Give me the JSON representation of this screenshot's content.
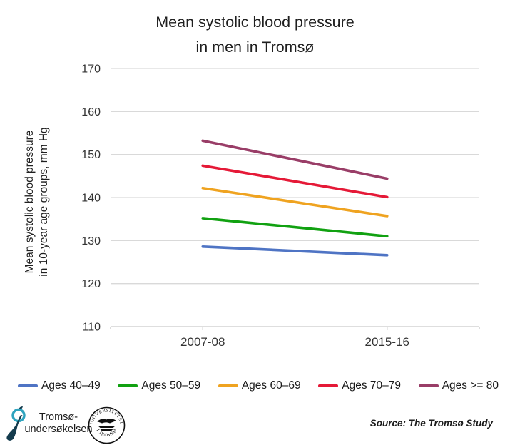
{
  "header": {
    "title_line1": "Mean systolic blood pressure",
    "title_line2": "in men in Tromsø"
  },
  "y_axis_label": {
    "line1": "Mean systolic blood pressure",
    "line2": "in 10-year age groups, mm Hg"
  },
  "chart_data": {
    "type": "line",
    "title": "Mean systolic blood pressure in men in Tromsø",
    "ylabel": "Mean systolic blood pressure in 10-year age groups, mm Hg",
    "xlabel": "",
    "x": [
      "2007-08",
      "2015-16"
    ],
    "series": [
      {
        "name": "Ages 40–49",
        "color": "#4F74C4",
        "values": [
          128.6,
          126.6
        ]
      },
      {
        "name": "Ages 50–59",
        "color": "#11A111",
        "values": [
          135.2,
          131.0
        ]
      },
      {
        "name": "Ages 60–69",
        "color": "#EFA320",
        "values": [
          142.2,
          135.7
        ]
      },
      {
        "name": "Ages 70–79",
        "color": "#E51937",
        "values": [
          147.4,
          140.1
        ]
      },
      {
        "name": "Ages >= 80",
        "color": "#993D67",
        "values": [
          153.2,
          144.4
        ]
      }
    ],
    "ylim": [
      110,
      170
    ],
    "yticks": [
      110,
      120,
      130,
      140,
      150,
      160,
      170
    ],
    "grid": true,
    "legend_position": "bottom"
  },
  "footer": {
    "logo_text_line1": "Tromsø-",
    "logo_text_line2": "undersøkelsen",
    "seal_text_top": "UNIVERSITETET",
    "seal_text_bottom": "I TROMSØ",
    "source": "Source: The Tromsø Study"
  },
  "colors": {
    "gridline": "#D9D9D9",
    "axis": "#C9C9C9",
    "logo_teal": "#2FA3BE",
    "logo_dark": "#143B4D"
  }
}
